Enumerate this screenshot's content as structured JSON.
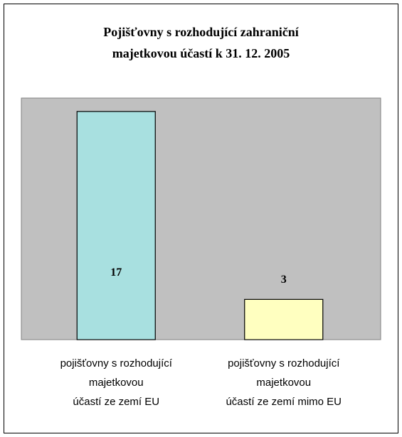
{
  "chart_data": {
    "type": "bar",
    "title": "Pojišťovny s rozhodující zahraniční\nmajetkovou účastí k 31. 12. 2005",
    "categories": [
      "pojišťovny s rozhodující\nmajetkovou\núčastí ze zemí EU",
      "pojišťovny s rozhodující\nmajetkovou\núčastí ze zemí  mimo EU"
    ],
    "values": [
      17,
      3
    ],
    "colors": [
      "#a8e0e0",
      "#ffffc0"
    ],
    "plot_background": "#c0c0c0",
    "ylim": [
      0,
      18
    ]
  }
}
